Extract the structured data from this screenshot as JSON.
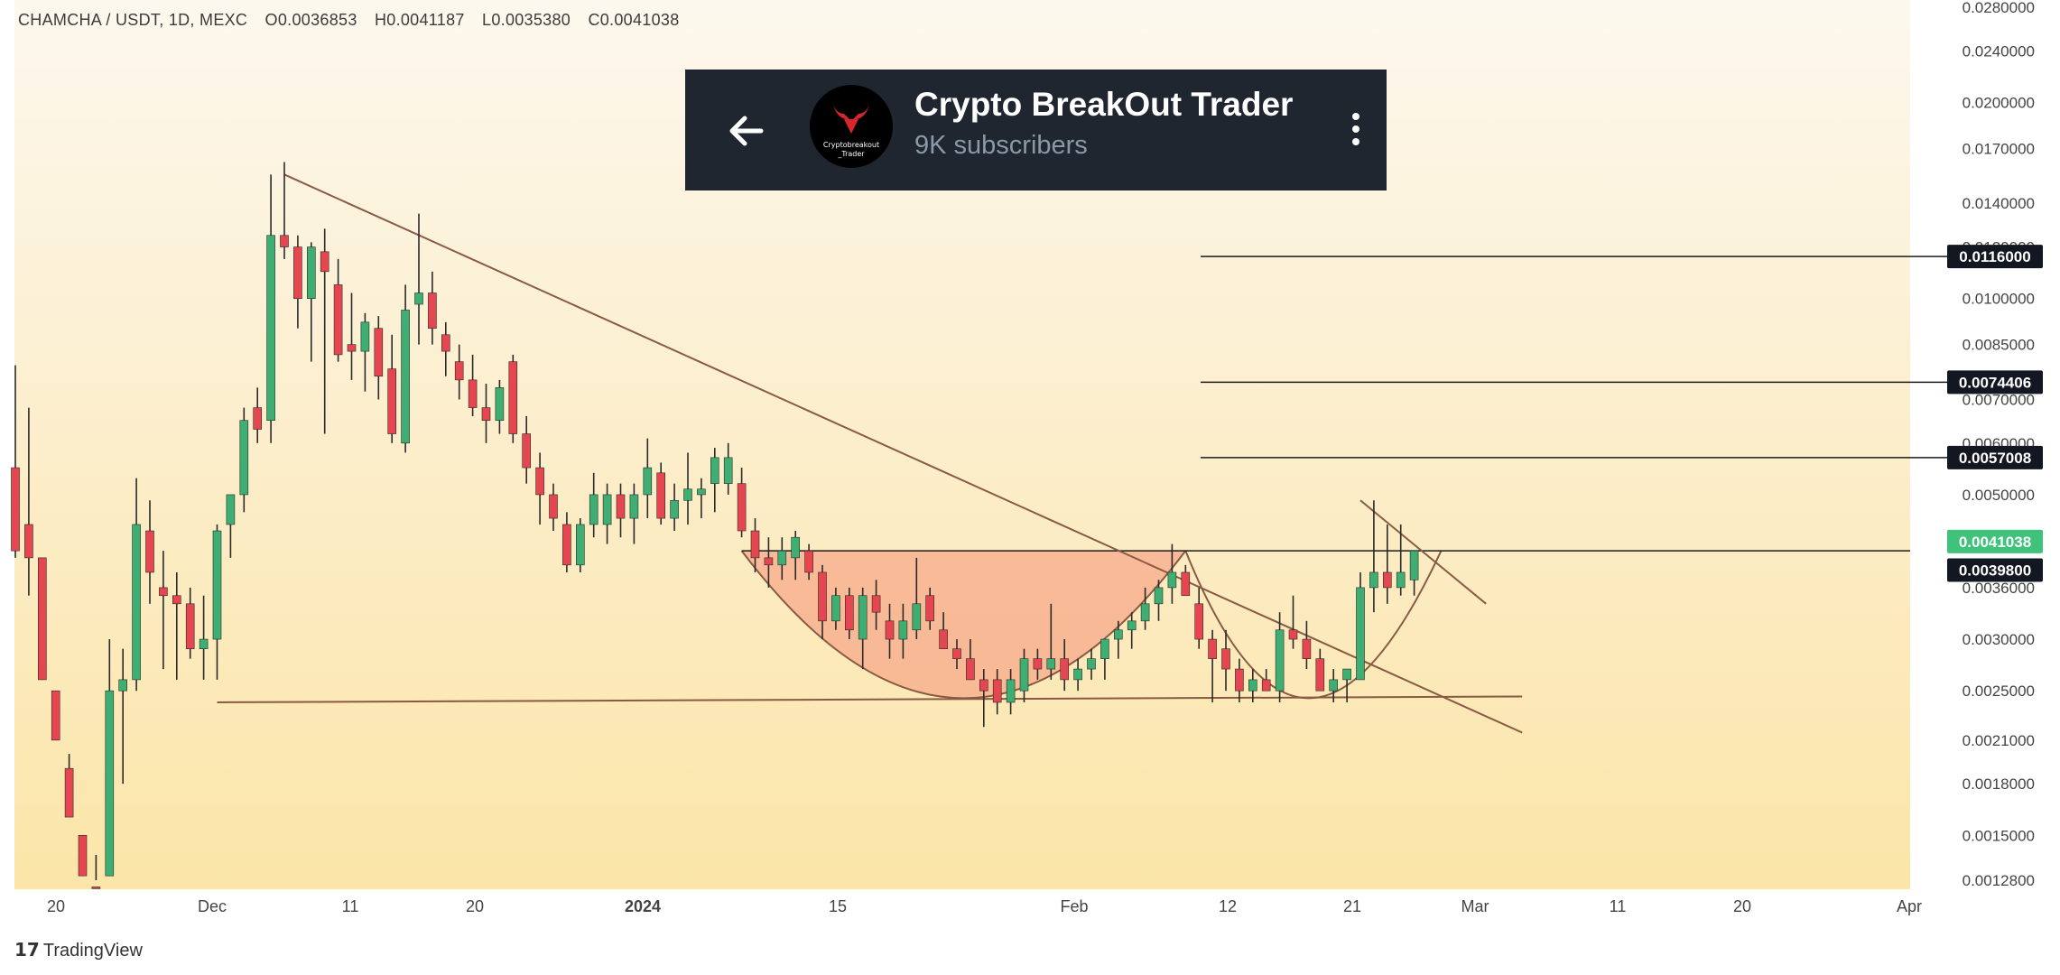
{
  "header": {
    "symbol": "CHAMCHA / USDT, 1D, MEXC",
    "open": "O0.0036853",
    "high": "H0.0041187",
    "low": "L0.0035380",
    "close": "C0.0041038"
  },
  "overlay": {
    "channel_name": "Crypto BreakOut Trader",
    "subscribers": "9K subscribers",
    "avatar_text": "Cryptobreakout _Trader",
    "back_icon": "arrow-left-icon",
    "menu_icon": "kebab-menu-icon"
  },
  "footer": {
    "brand": "TradingView"
  },
  "colors": {
    "up": "#3fae72",
    "down": "#e5464f",
    "cup_fill": "#f7a98a",
    "label_bg": "#131722",
    "current_bg": "#3fc27a"
  },
  "chart_data": {
    "type": "candlestick",
    "scale": "log",
    "y_ticks": [
      "0.0280000",
      "0.0240000",
      "0.0200000",
      "0.0170000",
      "0.0140000",
      "0.0120000",
      "0.0100000",
      "0.0085000",
      "0.0070000",
      "0.0060000",
      "0.0050000",
      "0.0036000",
      "0.0030000",
      "0.0025000",
      "0.0021000",
      "0.0018000",
      "0.0015000",
      "0.0012800"
    ],
    "x_ticks": [
      "20",
      "Dec",
      "11",
      "20",
      "2024",
      "15",
      "Feb",
      "12",
      "21",
      "Mar",
      "11",
      "20",
      "Apr"
    ],
    "price_labels": [
      {
        "text": "0.0116000",
        "value": 0.0116,
        "kind": "level"
      },
      {
        "text": "0.0074406",
        "value": 0.0074406,
        "kind": "level"
      },
      {
        "text": "0.0057008",
        "value": 0.0057008,
        "kind": "level"
      },
      {
        "text": "0.0041038",
        "value": 0.0041038,
        "kind": "current"
      },
      {
        "text": "0.0039800",
        "value": 0.00398,
        "kind": "level"
      }
    ],
    "candles": [
      [
        0.0055,
        0.0079,
        0.004,
        0.0041
      ],
      [
        0.0045,
        0.0068,
        0.0035,
        0.004
      ],
      [
        0.004,
        0.004,
        0.0026,
        0.0026
      ],
      [
        0.0025,
        0.0025,
        0.0021,
        0.0021
      ],
      [
        0.0019,
        0.002,
        0.0016,
        0.0016
      ],
      [
        0.0015,
        0.0015,
        0.0013,
        0.0013
      ],
      [
        0.00125,
        0.0014,
        0.0012,
        0.0012
      ],
      [
        0.0013,
        0.003,
        0.0013,
        0.0025
      ],
      [
        0.0025,
        0.0029,
        0.0018,
        0.0026
      ],
      [
        0.0026,
        0.0053,
        0.0025,
        0.0045
      ],
      [
        0.0044,
        0.0049,
        0.0034,
        0.0038
      ],
      [
        0.0036,
        0.0041,
        0.0027,
        0.0035
      ],
      [
        0.0035,
        0.0038,
        0.0026,
        0.0034
      ],
      [
        0.0034,
        0.0036,
        0.0028,
        0.0029
      ],
      [
        0.0029,
        0.0035,
        0.0026,
        0.003
      ],
      [
        0.003,
        0.0045,
        0.0026,
        0.0044
      ],
      [
        0.0045,
        0.005,
        0.004,
        0.005
      ],
      [
        0.005,
        0.0068,
        0.0047,
        0.0065
      ],
      [
        0.0068,
        0.0073,
        0.006,
        0.0063
      ],
      [
        0.0065,
        0.0155,
        0.006,
        0.0125
      ],
      [
        0.0125,
        0.0162,
        0.0115,
        0.012
      ],
      [
        0.012,
        0.0125,
        0.009,
        0.01
      ],
      [
        0.01,
        0.0122,
        0.008,
        0.012
      ],
      [
        0.0118,
        0.0128,
        0.0062,
        0.011
      ],
      [
        0.0105,
        0.0115,
        0.008,
        0.0082
      ],
      [
        0.0085,
        0.0102,
        0.0075,
        0.0083
      ],
      [
        0.0083,
        0.0095,
        0.0072,
        0.0092
      ],
      [
        0.009,
        0.0094,
        0.007,
        0.0076
      ],
      [
        0.0078,
        0.0088,
        0.006,
        0.0062
      ],
      [
        0.006,
        0.0105,
        0.0058,
        0.0096
      ],
      [
        0.0098,
        0.0135,
        0.0085,
        0.0102
      ],
      [
        0.0102,
        0.011,
        0.0085,
        0.009
      ],
      [
        0.0088,
        0.0092,
        0.0076,
        0.0083
      ],
      [
        0.008,
        0.0085,
        0.007,
        0.0075
      ],
      [
        0.0075,
        0.0082,
        0.0066,
        0.0068
      ],
      [
        0.0068,
        0.0074,
        0.006,
        0.0065
      ],
      [
        0.0065,
        0.0075,
        0.0062,
        0.0073
      ],
      [
        0.008,
        0.0082,
        0.006,
        0.0062
      ],
      [
        0.0062,
        0.0066,
        0.0052,
        0.0055
      ],
      [
        0.0055,
        0.0058,
        0.0045,
        0.005
      ],
      [
        0.005,
        0.0052,
        0.0044,
        0.0046
      ],
      [
        0.0045,
        0.0047,
        0.0038,
        0.0039
      ],
      [
        0.0039,
        0.0046,
        0.0038,
        0.0045
      ],
      [
        0.0045,
        0.0054,
        0.0043,
        0.005
      ],
      [
        0.0045,
        0.0052,
        0.0042,
        0.005
      ],
      [
        0.005,
        0.0052,
        0.0043,
        0.0046
      ],
      [
        0.0046,
        0.0052,
        0.0042,
        0.005
      ],
      [
        0.005,
        0.0061,
        0.0046,
        0.0055
      ],
      [
        0.0054,
        0.0056,
        0.0045,
        0.0046
      ],
      [
        0.0046,
        0.0052,
        0.0044,
        0.0049
      ],
      [
        0.0049,
        0.0058,
        0.0045,
        0.0051
      ],
      [
        0.005,
        0.0053,
        0.0046,
        0.0051
      ],
      [
        0.0052,
        0.0059,
        0.0047,
        0.0057
      ],
      [
        0.0052,
        0.006,
        0.005,
        0.0057
      ],
      [
        0.0052,
        0.0055,
        0.0043,
        0.0044
      ],
      [
        0.0044,
        0.0046,
        0.0038,
        0.004
      ],
      [
        0.004,
        0.0043,
        0.0036,
        0.0039
      ],
      [
        0.0039,
        0.0043,
        0.0037,
        0.0041
      ],
      [
        0.004,
        0.0044,
        0.0037,
        0.0043
      ],
      [
        0.0041,
        0.0042,
        0.0037,
        0.0038
      ],
      [
        0.0038,
        0.0039,
        0.003,
        0.0032
      ],
      [
        0.0032,
        0.0036,
        0.0031,
        0.0035
      ],
      [
        0.0035,
        0.0036,
        0.003,
        0.0031
      ],
      [
        0.003,
        0.0036,
        0.0027,
        0.0035
      ],
      [
        0.0035,
        0.0037,
        0.0031,
        0.0033
      ],
      [
        0.0032,
        0.0034,
        0.0028,
        0.003
      ],
      [
        0.003,
        0.0034,
        0.0028,
        0.0032
      ],
      [
        0.0031,
        0.004,
        0.003,
        0.0034
      ],
      [
        0.0035,
        0.0036,
        0.0031,
        0.0032
      ],
      [
        0.0031,
        0.0033,
        0.0029,
        0.0029
      ],
      [
        0.0029,
        0.003,
        0.0027,
        0.0028
      ],
      [
        0.0028,
        0.003,
        0.0026,
        0.0026
      ],
      [
        0.0026,
        0.0027,
        0.0022,
        0.0025
      ],
      [
        0.0026,
        0.0027,
        0.0023,
        0.0024
      ],
      [
        0.0024,
        0.0027,
        0.0023,
        0.0026
      ],
      [
        0.0025,
        0.0029,
        0.0024,
        0.0028
      ],
      [
        0.0028,
        0.0029,
        0.0026,
        0.0027
      ],
      [
        0.0027,
        0.0034,
        0.0026,
        0.0028
      ],
      [
        0.0028,
        0.003,
        0.0025,
        0.0026
      ],
      [
        0.0026,
        0.0028,
        0.0025,
        0.0027
      ],
      [
        0.0027,
        0.0029,
        0.0026,
        0.0028
      ],
      [
        0.0028,
        0.003,
        0.0026,
        0.003
      ],
      [
        0.003,
        0.0032,
        0.0028,
        0.0031
      ],
      [
        0.0031,
        0.0033,
        0.0029,
        0.0032
      ],
      [
        0.0032,
        0.0036,
        0.0031,
        0.0034
      ],
      [
        0.0034,
        0.0037,
        0.0032,
        0.0036
      ],
      [
        0.0036,
        0.0042,
        0.0034,
        0.0038
      ],
      [
        0.0038,
        0.0039,
        0.0035,
        0.0035
      ],
      [
        0.0034,
        0.0036,
        0.0029,
        0.003
      ],
      [
        0.003,
        0.0031,
        0.0024,
        0.0028
      ],
      [
        0.0029,
        0.0031,
        0.0025,
        0.0027
      ],
      [
        0.0027,
        0.0028,
        0.0024,
        0.0025
      ],
      [
        0.0025,
        0.0027,
        0.0024,
        0.0026
      ],
      [
        0.0026,
        0.0027,
        0.0025,
        0.0025
      ],
      [
        0.0025,
        0.0033,
        0.0024,
        0.0031
      ],
      [
        0.0031,
        0.0035,
        0.0029,
        0.003
      ],
      [
        0.003,
        0.0032,
        0.0027,
        0.0028
      ],
      [
        0.0028,
        0.0029,
        0.0025,
        0.0025
      ],
      [
        0.0025,
        0.0027,
        0.0024,
        0.0026
      ],
      [
        0.0026,
        0.0027,
        0.0024,
        0.0027
      ],
      [
        0.0026,
        0.0038,
        0.0026,
        0.0036
      ],
      [
        0.0036,
        0.0049,
        0.0033,
        0.0038
      ],
      [
        0.0038,
        0.0045,
        0.0034,
        0.0036
      ],
      [
        0.0036,
        0.0045,
        0.0035,
        0.0038
      ],
      [
        0.0037,
        0.0041,
        0.0035,
        0.0041
      ]
    ],
    "trendline_from_candle": 20,
    "trendline_to_candle": 108,
    "trendline_from_price": 0.0155,
    "trendline_to_price": 0.00245,
    "support_from_candle": 15,
    "support_to_candle": 108,
    "support_from_price": 0.0024,
    "support_to_price": 0.00245,
    "cup_neckline": 0.0041,
    "handle_resistance": 0.0041,
    "cup1_candles": [
      54,
      87
    ],
    "cup2_candles": [
      87,
      106
    ]
  }
}
